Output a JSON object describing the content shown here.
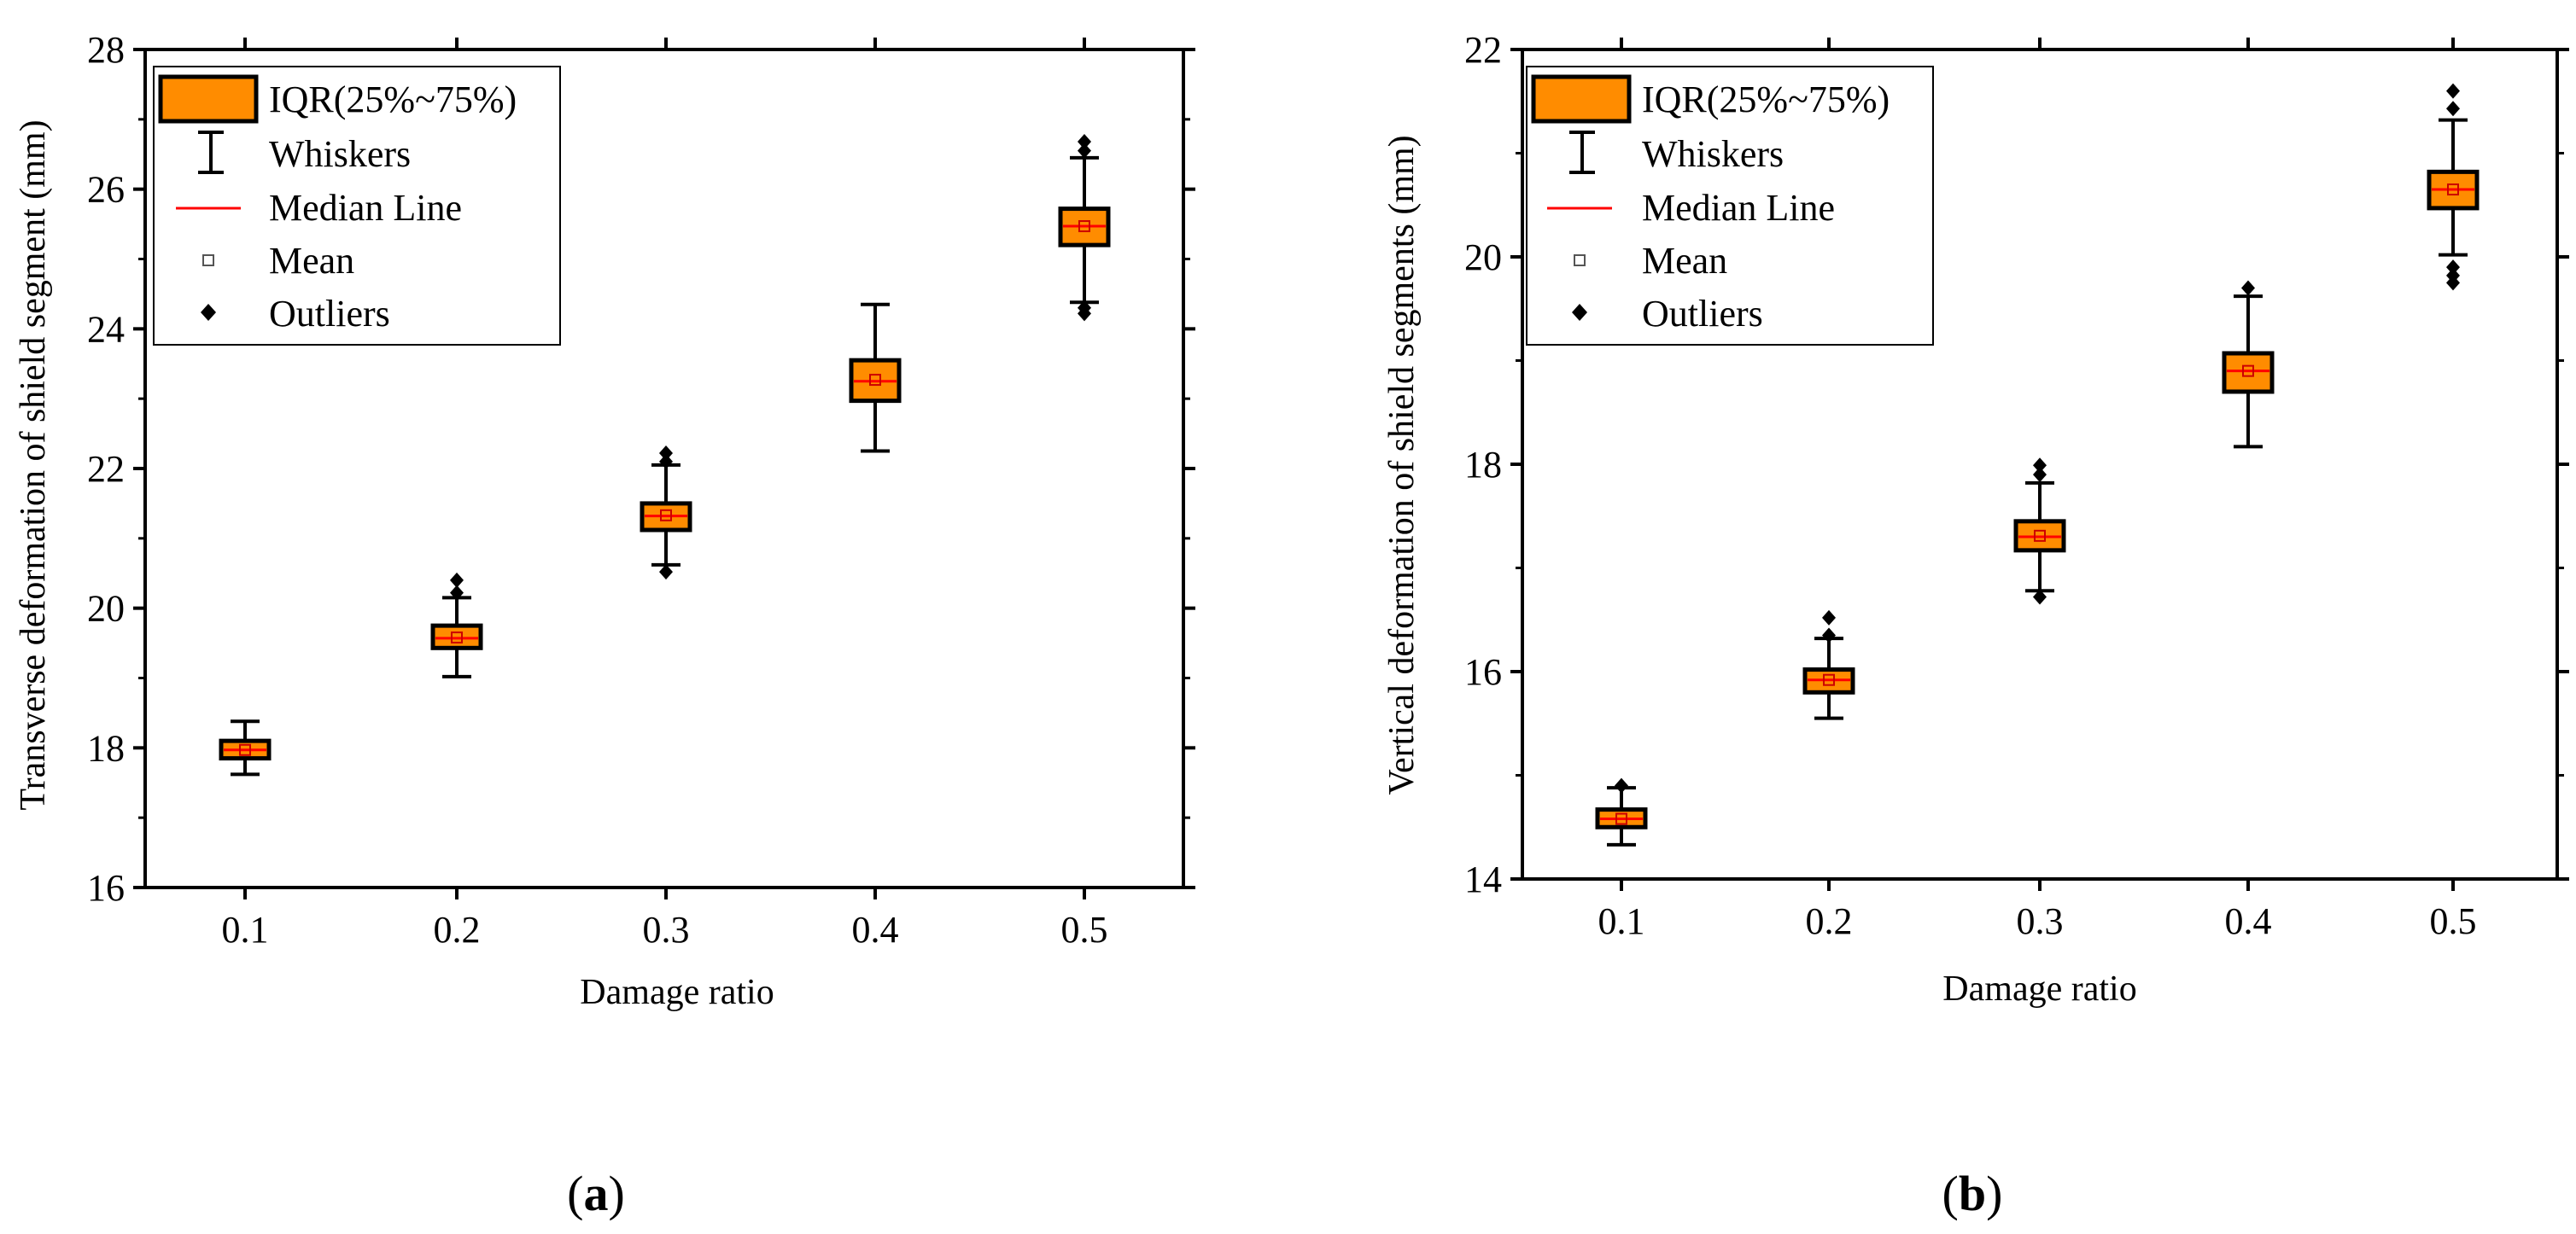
{
  "figure": {
    "panel_labels": [
      "(a)",
      "(b)"
    ]
  },
  "legend": {
    "iqr": "IQR(25%~75%)",
    "whiskers": "Whiskers",
    "median": "Median Line",
    "mean": "Mean",
    "outliers": "Outliers"
  },
  "colors": {
    "box_fill": "#FF8C00",
    "median_line": "#FF0000",
    "axis": "#000000"
  },
  "chart_data": [
    {
      "type": "box",
      "title": "",
      "xlabel": "Damage ratio",
      "ylabel": "Transverse deformation of shield segment (mm)",
      "xcategories": [
        "0.1",
        "0.2",
        "0.3",
        "0.4",
        "0.5"
      ],
      "ylim": [
        16,
        28
      ],
      "yticks": [
        "16",
        "18",
        "20",
        "22",
        "24",
        "26",
        "28"
      ],
      "boxes": [
        {
          "x": "0.1",
          "whisker_low": 17.62,
          "q1": 17.85,
          "median": 17.97,
          "mean": 17.97,
          "q3": 18.1,
          "whisker_high": 18.38,
          "outliers": []
        },
        {
          "x": "0.2",
          "whisker_low": 19.02,
          "q1": 19.43,
          "median": 19.57,
          "mean": 19.58,
          "q3": 19.75,
          "whisker_high": 20.15,
          "outliers": [
            20.22,
            20.4
          ]
        },
        {
          "x": "0.3",
          "whisker_low": 20.62,
          "q1": 21.12,
          "median": 21.32,
          "mean": 21.33,
          "q3": 21.5,
          "whisker_high": 22.05,
          "outliers": [
            20.52,
            22.1,
            22.22
          ]
        },
        {
          "x": "0.4",
          "whisker_low": 22.25,
          "q1": 22.97,
          "median": 23.25,
          "mean": 23.27,
          "q3": 23.55,
          "whisker_high": 24.35,
          "outliers": []
        },
        {
          "x": "0.5",
          "whisker_low": 24.38,
          "q1": 25.2,
          "median": 25.47,
          "mean": 25.47,
          "q3": 25.72,
          "whisker_high": 26.45,
          "outliers": [
            24.22,
            24.3,
            26.55,
            26.68
          ]
        }
      ]
    },
    {
      "type": "box",
      "title": "",
      "xlabel": "Damage ratio",
      "ylabel": "Vertical deformation of shield segments (mm)",
      "xcategories": [
        "0.1",
        "0.2",
        "0.3",
        "0.4",
        "0.5"
      ],
      "ylim": [
        14,
        22
      ],
      "yticks": [
        "14",
        "16",
        "18",
        "20",
        "22"
      ],
      "boxes": [
        {
          "x": "0.1",
          "whisker_low": 14.33,
          "q1": 14.5,
          "median": 14.58,
          "mean": 14.58,
          "q3": 14.67,
          "whisker_high": 14.88,
          "outliers": [
            14.9
          ]
        },
        {
          "x": "0.2",
          "whisker_low": 15.55,
          "q1": 15.8,
          "median": 15.92,
          "mean": 15.92,
          "q3": 16.02,
          "whisker_high": 16.32,
          "outliers": [
            16.35,
            16.52
          ]
        },
        {
          "x": "0.3",
          "whisker_low": 16.78,
          "q1": 17.17,
          "median": 17.3,
          "mean": 17.31,
          "q3": 17.45,
          "whisker_high": 17.82,
          "outliers": [
            16.72,
            17.9,
            17.99
          ]
        },
        {
          "x": "0.4",
          "whisker_low": 18.17,
          "q1": 18.7,
          "median": 18.9,
          "mean": 18.9,
          "q3": 19.07,
          "whisker_high": 19.62,
          "outliers": [
            19.7
          ]
        },
        {
          "x": "0.5",
          "whisker_low": 20.02,
          "q1": 20.47,
          "median": 20.65,
          "mean": 20.65,
          "q3": 20.82,
          "whisker_high": 21.32,
          "outliers": [
            19.75,
            19.82,
            19.9,
            21.43,
            21.6
          ]
        }
      ]
    }
  ]
}
